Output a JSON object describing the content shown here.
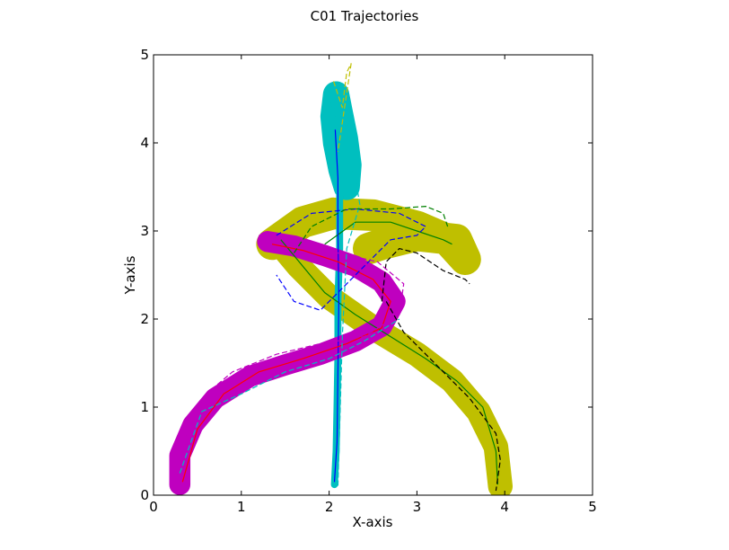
{
  "chart_data": {
    "type": "line",
    "title": "C01 Trajectories",
    "xlabel": "X-axis",
    "ylabel": "Y-axis",
    "xlim": [
      0,
      5
    ],
    "ylim": [
      0,
      5
    ],
    "xticks": [
      "0",
      "1",
      "2",
      "3",
      "4",
      "5"
    ],
    "yticks": [
      "0",
      "1",
      "2",
      "3",
      "4",
      "5"
    ],
    "grid": false,
    "legend": "none",
    "bands": [
      {
        "color": "#bfbf00",
        "width": 0.36,
        "x": [
          1.35,
          1.7,
          2.05,
          2.5,
          3.0,
          3.35,
          3.55,
          3.45,
          3.0,
          2.6,
          2.45
        ],
        "y": [
          2.85,
          3.1,
          3.2,
          3.18,
          3.05,
          2.9,
          2.68,
          2.9,
          2.95,
          2.85,
          2.8
        ]
      },
      {
        "color": "#bfbf00",
        "width": 0.28,
        "x": [
          1.4,
          1.65,
          2.0,
          2.5,
          3.0,
          3.4,
          3.7,
          3.9,
          3.95
        ],
        "y": [
          2.9,
          2.6,
          2.25,
          1.9,
          1.6,
          1.3,
          0.95,
          0.55,
          0.1
        ]
      },
      {
        "color": "#00bfbf",
        "width": 0.3,
        "x": [
          2.08,
          2.05,
          2.08,
          2.14,
          2.2,
          2.22,
          2.18,
          2.12,
          2.08
        ],
        "y": [
          4.55,
          4.3,
          4.0,
          3.7,
          3.5,
          3.75,
          4.05,
          4.35,
          4.55
        ]
      },
      {
        "color": "#00bfbf",
        "width": 0.08,
        "x": [
          2.12,
          2.12,
          2.1,
          2.1,
          2.09,
          2.08,
          2.06
        ],
        "y": [
          3.4,
          2.8,
          2.2,
          1.6,
          1.0,
          0.5,
          0.12
        ]
      },
      {
        "color": "#bf00bf",
        "width": 0.24,
        "x": [
          1.3,
          1.6,
          1.95,
          2.3,
          2.6,
          2.75,
          2.6,
          2.3,
          1.9,
          1.5,
          1.1,
          0.7,
          0.45,
          0.3,
          0.3
        ],
        "y": [
          2.88,
          2.83,
          2.72,
          2.6,
          2.42,
          2.2,
          1.92,
          1.75,
          1.6,
          1.48,
          1.35,
          1.1,
          0.8,
          0.45,
          0.12
        ]
      }
    ],
    "series": [
      {
        "color": "#008000",
        "style": "solid",
        "x": [
          1.45,
          1.7,
          1.95,
          2.3,
          2.7,
          3.1,
          3.45,
          3.75,
          3.9,
          3.92
        ],
        "y": [
          2.9,
          2.6,
          2.3,
          2.05,
          1.8,
          1.55,
          1.3,
          1.0,
          0.5,
          0.12
        ]
      },
      {
        "color": "#008000",
        "style": "solid",
        "x": [
          1.95,
          2.3,
          2.7,
          3.0,
          3.3,
          3.4
        ],
        "y": [
          2.85,
          3.1,
          3.1,
          3.0,
          2.9,
          2.85
        ]
      },
      {
        "color": "#0000ff",
        "style": "solid",
        "x": [
          2.07,
          2.1,
          2.1,
          2.11,
          2.1,
          2.09,
          2.06
        ],
        "y": [
          4.15,
          3.6,
          3.0,
          2.2,
          1.4,
          0.6,
          0.15
        ]
      },
      {
        "color": "#ff0000",
        "style": "solid",
        "x": [
          1.35,
          1.7,
          2.1,
          2.5,
          2.7,
          2.6,
          2.2,
          1.7,
          1.2,
          0.8,
          0.5,
          0.33
        ],
        "y": [
          2.85,
          2.78,
          2.65,
          2.45,
          2.2,
          1.9,
          1.72,
          1.55,
          1.4,
          1.15,
          0.75,
          0.15
        ]
      },
      {
        "color": "#0000ff",
        "style": "dashed",
        "x": [
          1.4,
          1.8,
          2.3,
          2.8,
          3.1,
          3.0,
          2.7,
          2.3,
          1.9,
          1.6,
          1.4
        ],
        "y": [
          2.95,
          3.2,
          3.25,
          3.2,
          3.05,
          2.95,
          2.9,
          2.5,
          2.1,
          2.2,
          2.5
        ]
      },
      {
        "color": "#000000",
        "style": "dashed",
        "x": [
          2.6,
          2.65,
          2.8,
          3.0,
          3.3,
          3.55,
          3.6
        ],
        "y": [
          2.2,
          2.65,
          2.8,
          2.75,
          2.55,
          2.45,
          2.4
        ]
      },
      {
        "color": "#000000",
        "style": "dashed",
        "x": [
          2.65,
          2.85,
          3.2,
          3.6,
          3.9,
          3.95,
          3.9
        ],
        "y": [
          2.2,
          1.85,
          1.5,
          1.1,
          0.7,
          0.4,
          0.05
        ]
      },
      {
        "color": "#bf00bf",
        "style": "dashed",
        "x": [
          1.2,
          1.6,
          2.1,
          2.55,
          2.85,
          2.8,
          2.4,
          1.9,
          1.4,
          0.9,
          0.6,
          0.4,
          0.25
        ],
        "y": [
          2.95,
          2.9,
          2.75,
          2.65,
          2.4,
          2.05,
          1.8,
          1.72,
          1.6,
          1.4,
          1.15,
          0.75,
          0.2
        ]
      },
      {
        "color": "#00bfbf",
        "style": "dashed",
        "x": [
          2.0,
          2.15,
          2.3,
          2.35,
          2.2,
          2.15,
          2.1
        ],
        "y": [
          4.5,
          4.0,
          3.6,
          3.3,
          2.8,
          1.8,
          0.1
        ]
      },
      {
        "color": "#bfbf00",
        "style": "dashed",
        "x": [
          2.05,
          2.1,
          2.15,
          2.2,
          2.25,
          2.1
        ],
        "y": [
          4.7,
          4.55,
          4.4,
          4.8,
          4.9,
          3.9
        ]
      },
      {
        "color": "#008000",
        "style": "dashed",
        "x": [
          1.6,
          1.8,
          2.2,
          2.7,
          3.1,
          3.3,
          3.35
        ],
        "y": [
          2.75,
          3.05,
          3.25,
          3.25,
          3.28,
          3.2,
          3.05
        ]
      },
      {
        "color": "#00bfbf",
        "style": "dashed",
        "x": [
          0.3,
          0.55,
          1.0,
          1.5,
          2.0,
          2.4,
          2.8
        ],
        "y": [
          0.25,
          0.95,
          1.15,
          1.4,
          1.55,
          1.75,
          2.0
        ]
      }
    ]
  }
}
